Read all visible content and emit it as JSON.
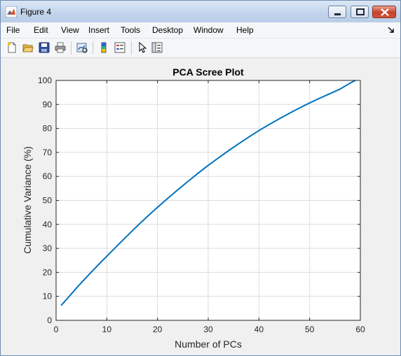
{
  "window": {
    "title": "Figure 4"
  },
  "menu": {
    "items": [
      "File",
      "Edit",
      "View",
      "Insert",
      "Tools",
      "Desktop",
      "Window",
      "Help"
    ]
  },
  "toolbar": {
    "buttons": [
      "new-figure-icon",
      "open-file-icon",
      "save-icon",
      "print-icon",
      "link-plot-icon",
      "insert-colorbar-icon",
      "insert-legend-icon",
      "edit-plot-icon",
      "property-inspector-icon"
    ]
  },
  "colors": {
    "line": "#0072bd",
    "grid": "#dcdcdc",
    "titlebar": "#c3d5ec"
  },
  "chart_data": {
    "type": "line",
    "title": "PCA Scree Plot",
    "xlabel": "Number of PCs",
    "ylabel": "Cumulative Variance (%)",
    "xlim": [
      0,
      60
    ],
    "ylim": [
      0,
      100
    ],
    "xticks": [
      "0",
      "10",
      "20",
      "30",
      "40",
      "50",
      "60"
    ],
    "yticks": [
      "0",
      "10",
      "20",
      "30",
      "40",
      "50",
      "60",
      "70",
      "80",
      "90",
      "100"
    ],
    "grid": true,
    "series": [
      {
        "x": [
          1,
          2,
          3,
          4,
          5,
          6,
          7,
          8,
          9,
          10,
          12,
          14,
          16,
          18,
          20,
          22,
          24,
          26,
          28,
          30,
          32,
          34,
          36,
          38,
          40,
          42,
          44,
          46,
          48,
          50,
          52,
          54,
          56,
          58,
          59
        ],
        "values": [
          6.2,
          8.6,
          11.0,
          13.4,
          15.7,
          18.0,
          20.2,
          22.4,
          24.6,
          26.7,
          31.0,
          35.2,
          39.3,
          43.3,
          47.1,
          50.8,
          54.4,
          57.9,
          61.3,
          64.6,
          67.7,
          70.7,
          73.6,
          76.4,
          79.1,
          81.6,
          84.0,
          86.3,
          88.5,
          90.6,
          92.6,
          94.5,
          96.4,
          98.9,
          100
        ]
      }
    ]
  }
}
